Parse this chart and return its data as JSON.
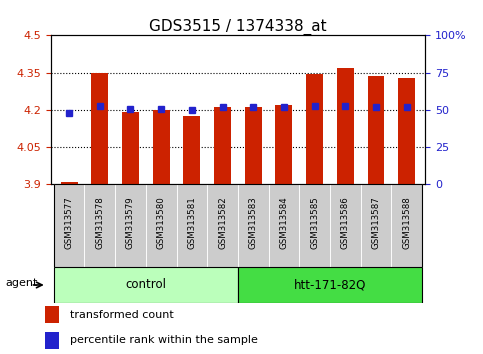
{
  "title": "GDS3515 / 1374338_at",
  "samples": [
    "GSM313577",
    "GSM313578",
    "GSM313579",
    "GSM313580",
    "GSM313581",
    "GSM313582",
    "GSM313583",
    "GSM313584",
    "GSM313585",
    "GSM313586",
    "GSM313587",
    "GSM313588"
  ],
  "red_values": [
    3.91,
    4.35,
    4.19,
    4.2,
    4.175,
    4.21,
    4.21,
    4.22,
    4.345,
    4.37,
    4.335,
    4.33
  ],
  "blue_values": [
    4.185,
    4.215,
    4.205,
    4.205,
    4.198,
    4.21,
    4.21,
    4.21,
    4.215,
    4.215,
    4.21,
    4.21
  ],
  "y_min": 3.9,
  "y_max": 4.5,
  "y_ticks": [
    3.9,
    4.05,
    4.2,
    4.35,
    4.5
  ],
  "y_tick_labels": [
    "3.9",
    "4.05",
    "4.2",
    "4.35",
    "4.5"
  ],
  "y2_ticks": [
    0,
    25,
    50,
    75,
    100
  ],
  "y2_tick_labels": [
    "0",
    "25",
    "50",
    "75",
    "100%"
  ],
  "dotted_lines": [
    4.05,
    4.2,
    4.35
  ],
  "group1_label": "control",
  "group2_label": "htt-171-82Q",
  "group1_color": "#BBFFBB",
  "group2_color": "#44DD44",
  "agent_label": "agent",
  "bar_color": "#CC2200",
  "dot_color": "#2222CC",
  "bar_bottom": 3.9,
  "legend_items": [
    {
      "color": "#CC2200",
      "label": "transformed count"
    },
    {
      "color": "#2222CC",
      "label": "percentile rank within the sample"
    }
  ],
  "tick_label_bg": "#CCCCCC",
  "plot_bg": "#FFFFFF",
  "title_fontsize": 11,
  "axis_label_color_left": "#CC2200",
  "axis_label_color_right": "#2222CC"
}
